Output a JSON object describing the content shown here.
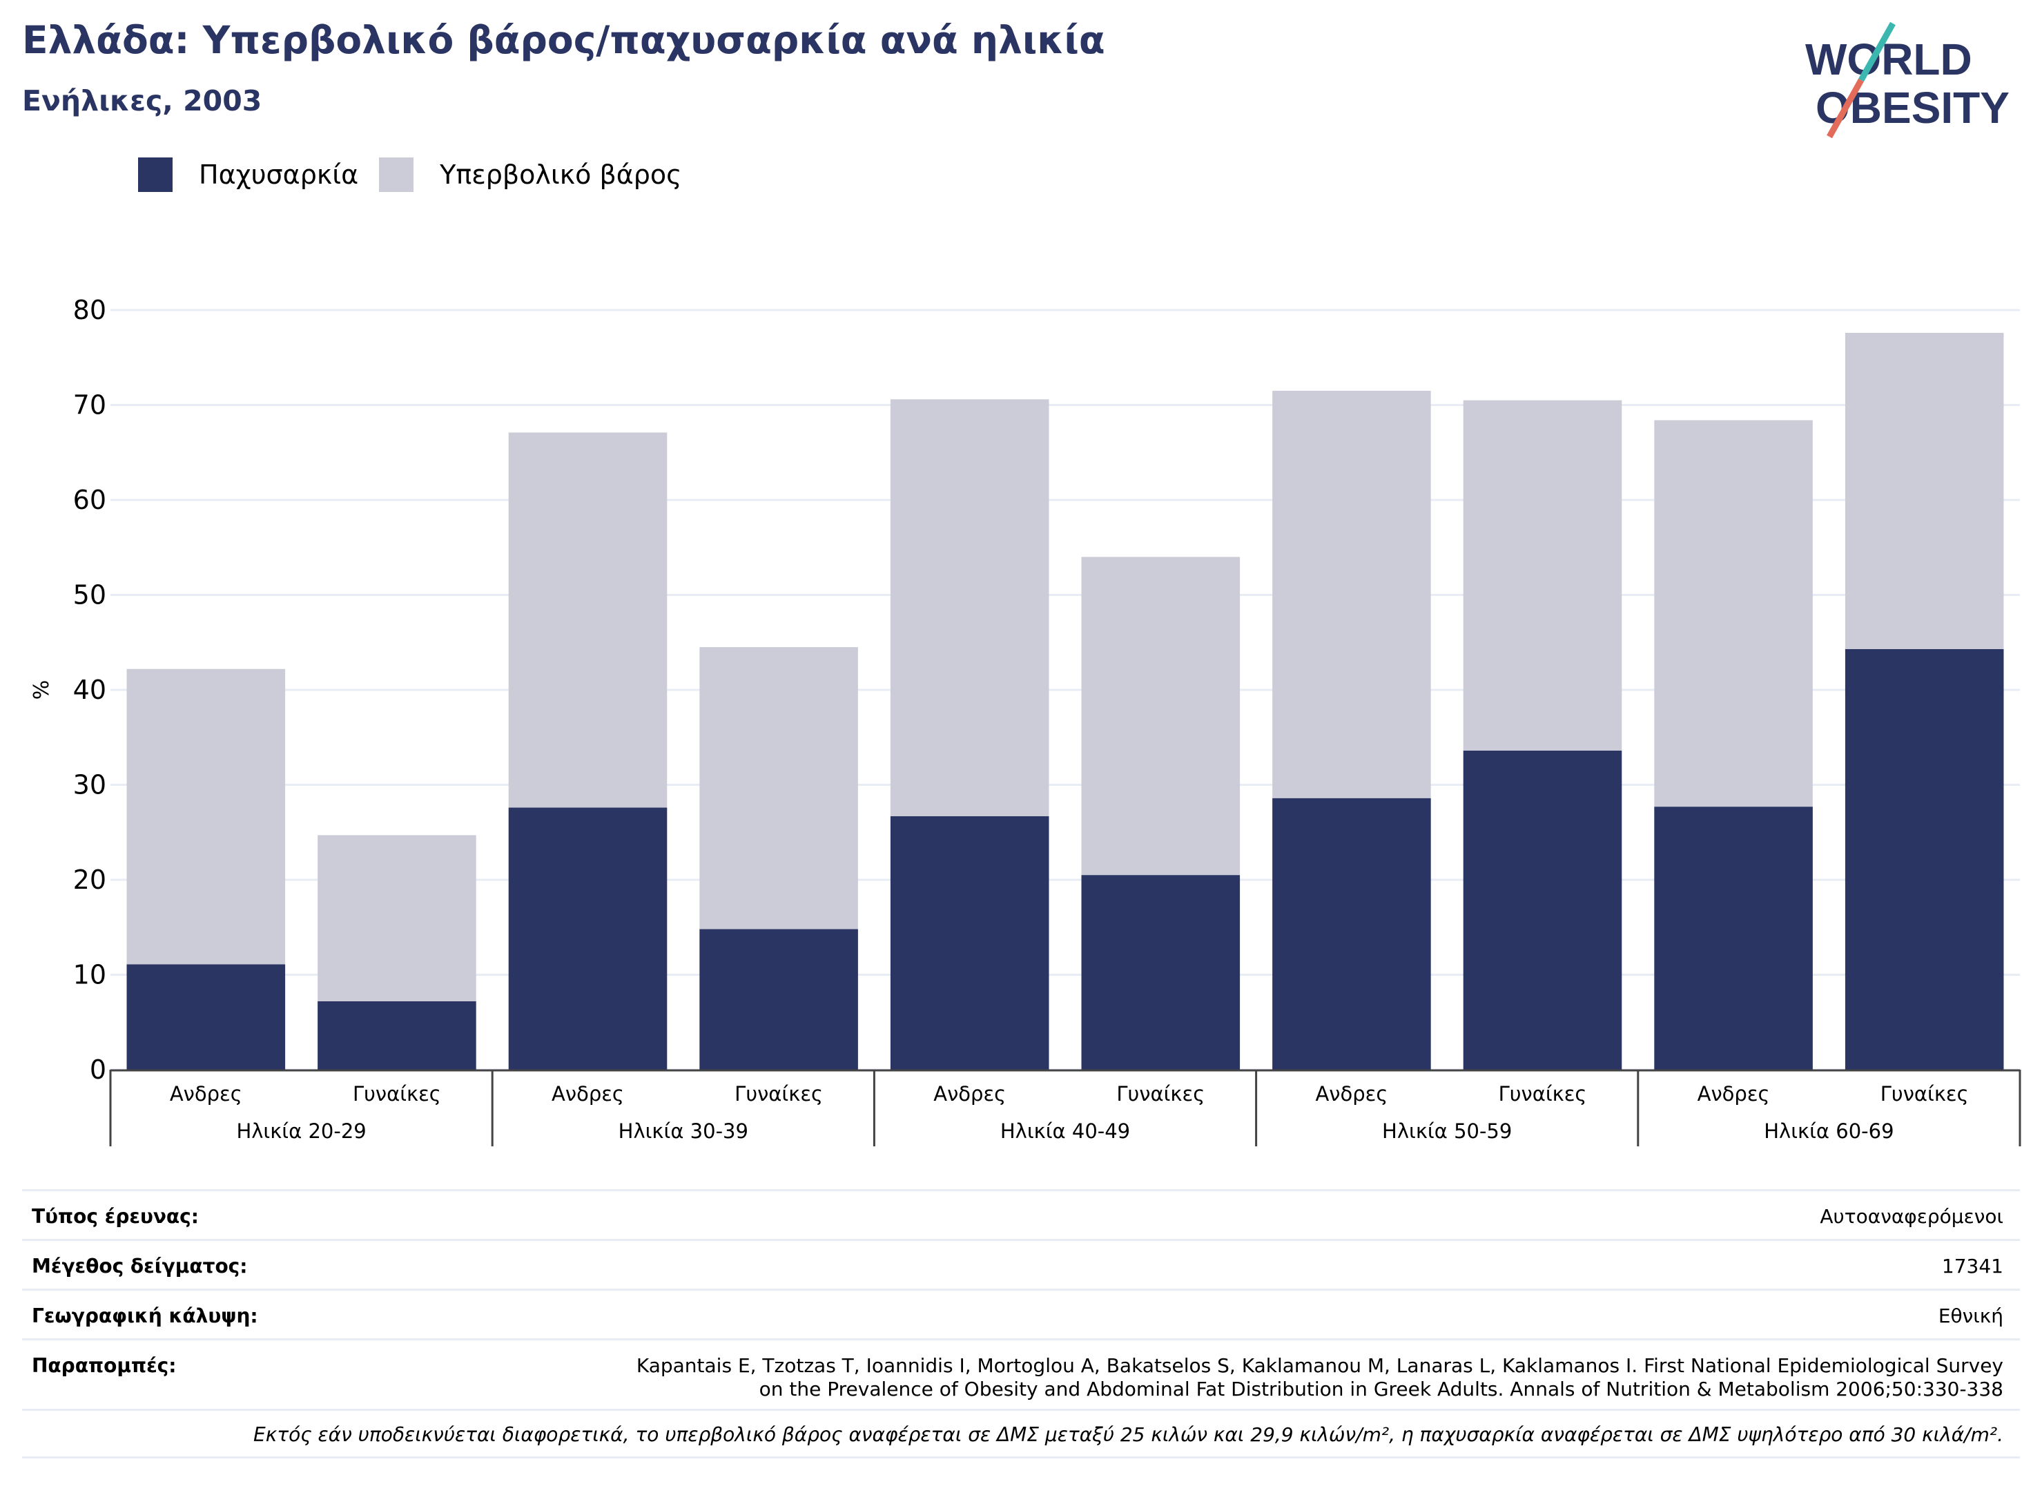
{
  "title": "Ελλάδα: Υπερβολικό βάρος/παχυσαρκία ανά ηλικία",
  "subtitle": "Ενήλικες, 2003",
  "logo": {
    "line1": "WORLD",
    "line2": "OBESITY"
  },
  "colors": {
    "obesity": "#2a3563",
    "overweight": "#cbccd8",
    "title": "#2a3563",
    "grid": "#e8ecf4",
    "logo_teal": "#3bb7b0",
    "logo_coral": "#e36b5a"
  },
  "chart_data": {
    "type": "bar",
    "stacked": true,
    "ylabel": "%",
    "ylim": [
      0,
      80
    ],
    "yticks": [
      0,
      10,
      20,
      30,
      40,
      50,
      60,
      70,
      80
    ],
    "grid": true,
    "legend_position": "top-left",
    "groups": [
      "Ηλικία 20-29",
      "Ηλικία 30-39",
      "Ηλικία 40-49",
      "Ηλικία 50-59",
      "Ηλικία 60-69"
    ],
    "subcategories": [
      "Ανδρες",
      "Γυναίκες"
    ],
    "categories": [
      "Ανδρες",
      "Γυναίκες",
      "Ανδρες",
      "Γυναίκες",
      "Ανδρες",
      "Γυναίκες",
      "Ανδρες",
      "Γυναίκες",
      "Ανδρες",
      "Γυναίκες"
    ],
    "series": [
      {
        "name": "Παχυσαρκία",
        "values": [
          11.1,
          7.2,
          27.6,
          14.8,
          26.7,
          20.5,
          28.6,
          33.6,
          27.7,
          44.3
        ]
      },
      {
        "name": "Υπερβολικό βάρος",
        "values": [
          31.1,
          17.5,
          39.5,
          29.7,
          43.9,
          33.5,
          42.9,
          36.9,
          40.7,
          33.3
        ]
      }
    ]
  },
  "metadata": {
    "survey_type_label": "Τύπος έρευνας:",
    "survey_type_value": "Αυτοαναφερόμενοι",
    "sample_size_label": "Μέγεθος δείγματος:",
    "sample_size_value": "17341",
    "coverage_label": "Γεωγραφική κάλυψη:",
    "coverage_value": "Εθνική",
    "references_label": "Παραπομπές:",
    "references_line1": "Kapantais E, Tzotzas T, Ioannidis I, Mortoglou A, Bakatselos S, Kaklamanou M, Lanaras L, Kaklamanos I. First National Epidemiological Survey",
    "references_line2": "on the Prevalence of Obesity and Abdominal Fat Distribution in Greek Adults. Annals of Nutrition & Metabolism 2006;50:330-338",
    "note": "Εκτός εάν υποδεικνύεται διαφορετικά, το υπερβολικό βάρος αναφέρεται σε ΔΜΣ μεταξύ 25 κιλών και 29,9 κιλών/m², η παχυσαρκία αναφέρεται σε ΔΜΣ υψηλότερο από 30 κιλά/m²."
  }
}
